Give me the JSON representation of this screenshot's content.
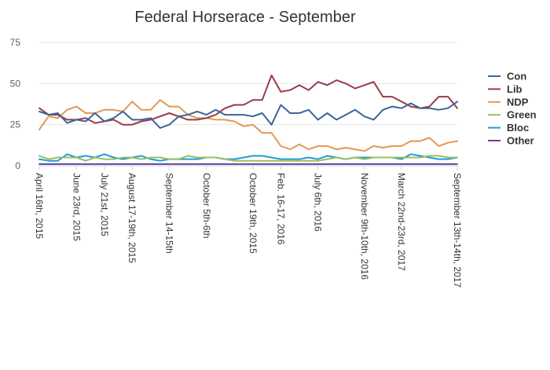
{
  "chart_data": {
    "type": "line",
    "title": "Federal Horserace - September",
    "xlabel": "",
    "ylabel": "",
    "ylim": [
      0,
      75
    ],
    "yticks": [
      0,
      25,
      50,
      75
    ],
    "grid": true,
    "legend_position": "right",
    "x_tick_labels": [
      "April 16th, 2015",
      "June 23rd, 2015",
      "July 21st, 2015",
      "August 17-19th, 2015",
      "September 14-15th",
      "October 5th-6th",
      "October 19th, 2015",
      "Feb. 16-17, 2016",
      "July 6th, 2016",
      "November 9th-10th, 2016",
      "March 22nd-23rd, 2017",
      "September 13th-14th, 2017"
    ],
    "series": [
      {
        "name": "Con",
        "color": "#3a6599",
        "values": [
          33,
          31,
          32,
          26,
          28,
          27,
          32,
          27,
          29,
          33,
          28,
          28,
          29,
          23,
          25,
          30,
          31,
          33,
          31,
          34,
          31,
          31,
          31,
          30,
          32,
          25,
          37,
          32,
          32,
          34,
          28,
          32,
          28,
          31,
          34,
          30,
          28,
          34,
          36,
          35,
          38,
          35,
          35,
          34,
          35,
          39
        ]
      },
      {
        "name": "Lib",
        "color": "#9a3b4a",
        "values": [
          35,
          31,
          31,
          28,
          28,
          29,
          26,
          27,
          28,
          25,
          25,
          27,
          28,
          30,
          32,
          30,
          28,
          28,
          29,
          31,
          35,
          37,
          37,
          40,
          40,
          55,
          45,
          46,
          49,
          46,
          51,
          49,
          52,
          50,
          47,
          49,
          51,
          42,
          42,
          39,
          36,
          35,
          36,
          42,
          42,
          35
        ]
      },
      {
        "name": "NDP",
        "color": "#e39852",
        "values": [
          22,
          30,
          29,
          34,
          36,
          32,
          32,
          34,
          34,
          33,
          39,
          34,
          34,
          40,
          36,
          36,
          31,
          29,
          29,
          28,
          28,
          27,
          24,
          25,
          20,
          20,
          12,
          10,
          13,
          10,
          12,
          12,
          10,
          11,
          10,
          9,
          12,
          11,
          12,
          12,
          15,
          15,
          17,
          12,
          14,
          15
        ]
      },
      {
        "name": "Green",
        "color": "#9ebe5c",
        "values": [
          6,
          4,
          5,
          5,
          5,
          3,
          5,
          4,
          4,
          5,
          5,
          4,
          5,
          5,
          4,
          4,
          6,
          5,
          5,
          5,
          4,
          3,
          3,
          3,
          3,
          3,
          3,
          3,
          3,
          3,
          3,
          4,
          5,
          4,
          5,
          4,
          5,
          5,
          5,
          5,
          5,
          5,
          6,
          6,
          5,
          5
        ]
      },
      {
        "name": "Bloc",
        "color": "#1a9fd8",
        "values": [
          4,
          3,
          3,
          7,
          5,
          6,
          5,
          7,
          5,
          4,
          5,
          6,
          4,
          3,
          4,
          4,
          4,
          4,
          5,
          5,
          4,
          4,
          5,
          6,
          6,
          5,
          4,
          4,
          4,
          5,
          4,
          6,
          5,
          4,
          5,
          5,
          5,
          5,
          5,
          4,
          7,
          6,
          5,
          4,
          4,
          5
        ]
      },
      {
        "name": "Other",
        "color": "#6b3fa0",
        "values": [
          1,
          1,
          1,
          1,
          1,
          1,
          1,
          1,
          1,
          1,
          1,
          1,
          1,
          1,
          1,
          1,
          1,
          1,
          1,
          1,
          1,
          1,
          1,
          1,
          1,
          1,
          1,
          1,
          1,
          1,
          1,
          1,
          1,
          1,
          1,
          1,
          1,
          1,
          1,
          1,
          1,
          1,
          1,
          1,
          1,
          1
        ]
      }
    ]
  }
}
